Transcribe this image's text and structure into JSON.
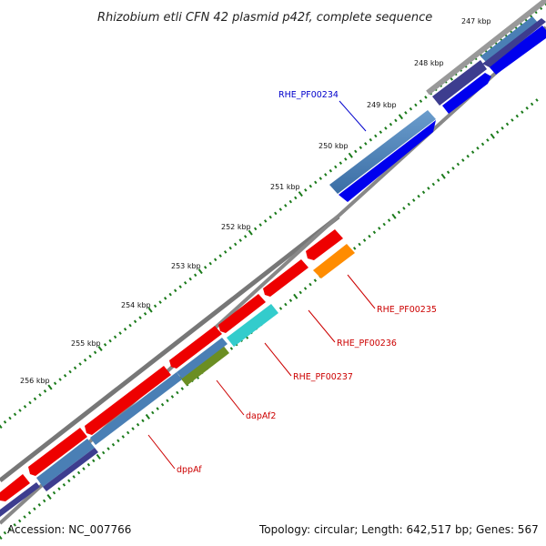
{
  "title": "Rhizobium etli CFN 42 plasmid p42f, complete sequence",
  "footer": {
    "accession": "Accession: NC_007766",
    "summary": "Topology: circular; Length: 642,517 bp; Genes: 567"
  },
  "ticks": [
    "247 kbp",
    "248 kbp",
    "249 kbp",
    "250 kbp",
    "251 kbp",
    "252 kbp",
    "253 kbp",
    "254 kbp",
    "255 kbp",
    "256 kbp"
  ],
  "gene_labels": [
    {
      "text": "RHE_PF00234",
      "color": "#0000cc"
    },
    {
      "text": "RHE_PF00235",
      "color": "#cc0000"
    },
    {
      "text": "RHE_PF00236",
      "color": "#cc0000"
    },
    {
      "text": "RHE_PF00237",
      "color": "#cc0000"
    },
    {
      "text": "dapAf2",
      "color": "#cc0000"
    },
    {
      "text": "dppAf",
      "color": "#cc0000"
    }
  ],
  "colors": {
    "forward_cds": "#0000ee",
    "reverse_cds": "#ee0000",
    "gene_track": "#4a7fb5",
    "orange_feature": "#ff8c00",
    "cyan_feature": "#33cccc",
    "olive_feature": "#6b8e23",
    "dark_track": "#3d3d8f",
    "backbone": "#888888",
    "tick_marks": "#1a7a1a"
  }
}
